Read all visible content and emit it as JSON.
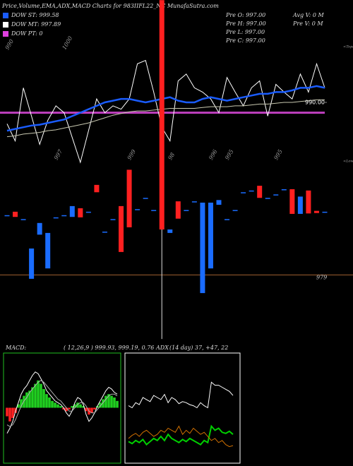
{
  "header": {
    "title": "Price,Volume,EMA,ADX,MACD Charts for 983IIFL22_NC MunafaSutra.com",
    "legend": [
      {
        "text": "DOW ST: 999.58",
        "color": "#1a5cff"
      },
      {
        "text": "DOW MT: 997.89",
        "color": "#ffffff"
      },
      {
        "text": "DOW PT: 0",
        "color": "#e040e0"
      }
    ],
    "info_left": [
      "Pre  O: 997.00",
      "Pre  H: 997.00",
      "Pre  L: 997.00",
      "Pre  C: 997.00"
    ],
    "info_right": [
      "Avg V: 0  M",
      "Pre  V: 0  M"
    ]
  },
  "chart_data": [
    {
      "type": "line",
      "ylim": [
        983,
        997
      ],
      "yticks": [
        {
          "value": 990,
          "label": "990.00"
        }
      ],
      "hlines": [
        {
          "value": 988.8,
          "color": "#c040c0"
        }
      ],
      "series": [
        {
          "color": "#ffffff",
          "width": 1,
          "values": [
            987.5,
            985.5,
            991.7,
            988.4,
            985.1,
            987.9,
            989.6,
            988.8,
            985.9,
            983.0,
            986.7,
            990.4,
            988.8,
            989.6,
            989.2,
            990.4,
            994.5,
            994.9,
            991.2,
            987.1,
            985.5,
            992.5,
            993.3,
            991.7,
            991.2,
            990.4,
            988.8,
            992.9,
            991.2,
            989.6,
            991.7,
            992.5,
            988.4,
            992.1,
            991.2,
            990.4,
            993.3,
            991.2,
            994.5,
            991.7
          ]
        },
        {
          "color": "#c8c8b0",
          "width": 1,
          "values": [
            986.0,
            986.1,
            986.3,
            986.4,
            986.5,
            986.7,
            986.8,
            987.0,
            987.2,
            987.4,
            987.6,
            987.9,
            988.2,
            988.5,
            988.7,
            988.9,
            989.0,
            989.0,
            989.1,
            989.2,
            989.3,
            989.3,
            989.3,
            989.3,
            989.4,
            989.5,
            989.5,
            989.5,
            989.6,
            989.6,
            989.7,
            989.8,
            989.8,
            989.9,
            990.0,
            990.0,
            990.1,
            990.2,
            990.3,
            990.3
          ]
        },
        {
          "color": "#1a5cff",
          "width": 2.5,
          "values": [
            986.7,
            986.9,
            987.1,
            987.3,
            987.4,
            987.6,
            987.8,
            988.0,
            988.4,
            988.8,
            989.2,
            989.6,
            990.0,
            990.2,
            990.4,
            990.4,
            990.2,
            990.0,
            990.2,
            990.4,
            990.6,
            990.2,
            990.0,
            990.0,
            990.4,
            990.6,
            990.4,
            990.2,
            990.4,
            990.6,
            990.8,
            991.0,
            991.0,
            991.2,
            991.2,
            991.4,
            991.7,
            991.7,
            991.9,
            991.7
          ]
        }
      ],
      "top_labels": [
        {
          "text": "990",
          "index": 0
        },
        {
          "text": "1000",
          "index": 7
        }
      ],
      "bottom_labels": [
        {
          "text": "997",
          "index": 6
        },
        {
          "text": "999",
          "index": 15
        },
        {
          "text": "98",
          "index": 20
        },
        {
          "text": "996",
          "index": 25
        },
        {
          "text": "995",
          "index": 27
        },
        {
          "text": "995",
          "index": 33
        }
      ],
      "edge_labels": [
        "<Topa",
        "<Lowe"
      ]
    },
    {
      "type": "candlestick",
      "ylim": [
        974,
        1005
      ],
      "yticks": [
        979
      ],
      "candles": [
        {
          "open": 992.8,
          "close": 992.8
        },
        {
          "open": 993.6,
          "close": 992.4
        },
        {
          "open": 991.9,
          "close": 991.9
        },
        {
          "open": 978.1,
          "close": 985.1
        },
        {
          "open": 988.3,
          "close": 991.0
        },
        {
          "open": 980.5,
          "close": 988.7
        },
        {
          "open": 992.3,
          "close": 992.3
        },
        {
          "open": 992.8,
          "close": 992.8
        },
        {
          "open": 992.4,
          "close": 994.9
        },
        {
          "open": 994.4,
          "close": 992.3
        },
        {
          "open": 993.6,
          "close": 993.6
        },
        {
          "open": 999.8,
          "close": 998.1
        },
        {
          "open": 989.0,
          "close": 989.0
        },
        {
          "open": 991.9,
          "close": 991.9
        },
        {
          "open": 994.9,
          "close": 984.3
        },
        {
          "open": 1003.3,
          "close": 990.0
        },
        {
          "open": 994.2,
          "close": 994.2
        },
        {
          "open": 996.8,
          "close": 996.8
        },
        {
          "open": 994.0,
          "close": 994.0
        },
        {
          "open": 1042.5,
          "close": 989.5,
          "low": 964.2
        },
        {
          "open": 988.7,
          "close": 989.5
        },
        {
          "open": 996.0,
          "close": 992.0
        },
        {
          "open": 994.0,
          "close": 994.0
        },
        {
          "open": 996.0,
          "close": 996.0
        },
        {
          "open": 974.8,
          "close": 995.7
        },
        {
          "open": 980.5,
          "close": 995.7
        },
        {
          "open": 995.2,
          "close": 996.3
        },
        {
          "open": 991.9,
          "close": 991.9
        },
        {
          "open": 994.0,
          "close": 994.0
        },
        {
          "open": 998.1,
          "close": 998.1
        },
        {
          "open": 998.5,
          "close": 998.5
        },
        {
          "open": 999.6,
          "close": 996.8
        },
        {
          "open": 996.8,
          "close": 996.8
        },
        {
          "open": 997.6,
          "close": 997.6
        },
        {
          "open": 998.8,
          "close": 998.8
        },
        {
          "open": 998.8,
          "close": 993.1
        },
        {
          "open": 993.1,
          "close": 997.1
        },
        {
          "open": 998.5,
          "close": 993.2
        },
        {
          "open": 993.8,
          "close": 993.3
        },
        {
          "open": 993.6,
          "close": 993.6
        }
      ],
      "up_color": "#1a6cff",
      "down_color": "#ff2020",
      "level_color": "#a06030"
    },
    {
      "type": "macd",
      "title": "MACD:",
      "params": "( 12,26,9 ) 999.93, 999.19, 0.76",
      "ylim": [
        -3,
        3
      ],
      "histogram": [
        -0.5,
        -0.8,
        -0.6,
        -0.3,
        0.2,
        0.5,
        0.7,
        0.9,
        1.0,
        1.2,
        1.4,
        1.6,
        1.4,
        1.1,
        0.8,
        0.6,
        0.4,
        0.3,
        0.2,
        0.1,
        -0.1,
        -0.2,
        -0.1,
        0.1,
        0.2,
        0.3,
        0.2,
        0.1,
        -0.2,
        -0.4,
        -0.3,
        -0.1,
        0.1,
        0.3,
        0.5,
        0.7,
        0.8,
        0.7,
        0.6,
        0.4
      ],
      "pos_color": "#20d020",
      "neg_color": "#ff2020",
      "series": [
        {
          "color": "#ffffff",
          "values": [
            -1.5,
            -1.2,
            -0.8,
            -0.2,
            0.3,
            0.8,
            1.1,
            1.3,
            1.6,
            1.9,
            2.1,
            2.0,
            1.7,
            1.4,
            1.0,
            0.8,
            0.6,
            0.4,
            0.3,
            0.2,
            0.0,
            -0.3,
            -0.5,
            -0.2,
            0.3,
            0.6,
            0.5,
            0.2,
            -0.4,
            -0.8,
            -0.6,
            -0.3,
            0.1,
            0.4,
            0.7,
            1.0,
            1.2,
            1.1,
            0.9,
            0.8
          ]
        },
        {
          "color": "#b0b0b0",
          "values": [
            -1.0,
            -1.1,
            -1.0,
            -0.7,
            -0.3,
            0.1,
            0.4,
            0.6,
            0.9,
            1.1,
            1.3,
            1.5,
            1.6,
            1.5,
            1.3,
            1.1,
            0.9,
            0.7,
            0.5,
            0.4,
            0.2,
            0.0,
            -0.2,
            -0.2,
            0.0,
            0.2,
            0.3,
            0.3,
            0.1,
            -0.2,
            -0.3,
            -0.3,
            -0.1,
            0.1,
            0.3,
            0.5,
            0.7,
            0.8,
            0.8,
            0.7
          ]
        }
      ]
    },
    {
      "type": "adx",
      "title": "ADX",
      "params": "(14  day) 37, +47, 22",
      "ylim": [
        0,
        100
      ],
      "series": [
        {
          "color": "#ffffff",
          "values": [
            52,
            50,
            55,
            53,
            60,
            58,
            56,
            62,
            60,
            58,
            63,
            55,
            60,
            58,
            54,
            56,
            55,
            53,
            52,
            50,
            55,
            52,
            50,
            75,
            72,
            72,
            70,
            68,
            66,
            62
          ]
        },
        {
          "color": "#00d000",
          "values": [
            17,
            15,
            18,
            16,
            19,
            14,
            17,
            20,
            18,
            22,
            18,
            24,
            20,
            18,
            16,
            19,
            17,
            20,
            18,
            16,
            14,
            18,
            16,
            32,
            28,
            30,
            26,
            25,
            27,
            24
          ]
        },
        {
          "color": "#d07000",
          "values": [
            20,
            23,
            25,
            22,
            26,
            28,
            25,
            22,
            24,
            28,
            26,
            30,
            28,
            26,
            32,
            24,
            28,
            25,
            30,
            27,
            24,
            26,
            22,
            18,
            20,
            16,
            18,
            14,
            12,
            13
          ]
        }
      ]
    }
  ]
}
